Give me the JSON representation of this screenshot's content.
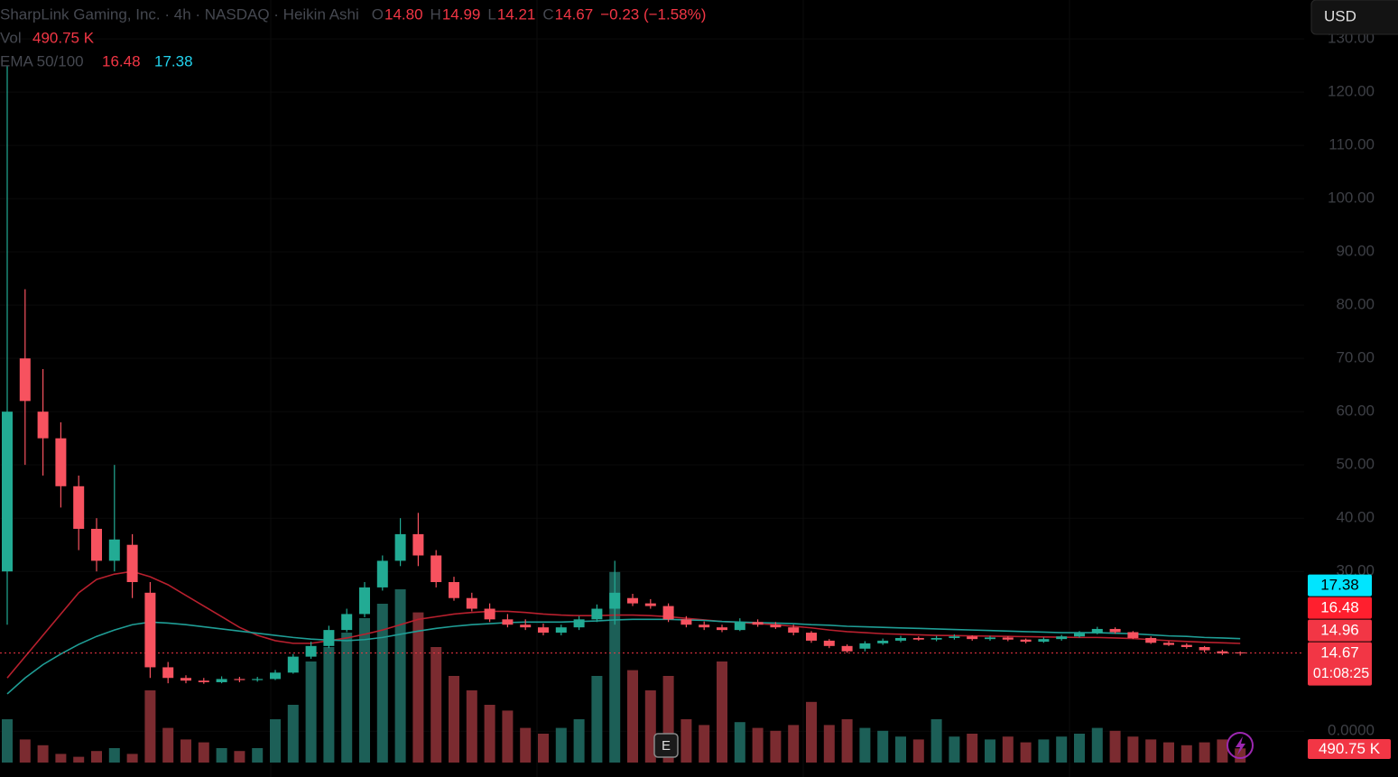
{
  "chart_data": {
    "type": "candlestick",
    "title": "SharpLink Gaming, Inc. · 4h · NASDAQ · Heikin Ashi",
    "ohlc_legend": [
      {
        "key": "O",
        "value": "14.80"
      },
      {
        "key": "H",
        "value": "14.99"
      },
      {
        "key": "L",
        "value": "14.21"
      },
      {
        "key": "C",
        "value": "14.67"
      }
    ],
    "change": "−0.23 (−1.58%)",
    "volume_legend": {
      "key": "Vol",
      "value": "490.75 K"
    },
    "ema_legend": {
      "key": "EMA 50/100",
      "values": [
        "16.48",
        "17.38"
      ]
    },
    "currency": "USD",
    "up_color": "#22ab94",
    "down_color": "#f7525f",
    "volume_up_color": "#1c5f57",
    "volume_down_color": "#7b2b30",
    "ylim": [
      -8.6,
      137.3
    ],
    "yticks": [
      {
        "value": 130,
        "label": "130.00"
      },
      {
        "value": 120,
        "label": "120.00"
      },
      {
        "value": 110,
        "label": "110.00"
      },
      {
        "value": 100,
        "label": "100.00"
      },
      {
        "value": 90,
        "label": "90.00"
      },
      {
        "value": 80,
        "label": "80.00"
      },
      {
        "value": 70,
        "label": "70.00"
      },
      {
        "value": 60,
        "label": "60.00"
      },
      {
        "value": 50,
        "label": "50.00"
      },
      {
        "value": 40,
        "label": "40.00"
      },
      {
        "value": 30,
        "label": "30.00"
      },
      {
        "value": 0,
        "label": "0.0000"
      }
    ],
    "grid": true,
    "open": [
      30,
      70,
      60,
      55,
      46,
      38,
      32,
      35,
      26,
      12,
      10,
      9.5,
      9.2,
      9.8,
      9.6,
      9.8,
      11,
      14,
      16,
      19,
      22,
      27,
      32,
      37,
      33,
      28,
      25,
      23,
      21,
      20,
      19.5,
      18.5,
      19.5,
      21,
      23,
      25,
      24,
      23.5,
      21,
      20,
      19.5,
      19,
      20.5,
      20,
      19.5,
      18.5,
      17,
      16,
      15.5,
      16.5,
      17,
      17.5,
      17.2,
      17.5,
      17.8,
      17.3,
      17.6,
      17.2,
      16.8,
      17.3,
      17.8,
      18.4,
      19.2,
      18.6,
      17.5,
      16.6,
      16.2,
      15.8,
      15.0,
      14.8
    ],
    "high": [
      125,
      83,
      68,
      58,
      48,
      40,
      50,
      37,
      28,
      13,
      10.5,
      10,
      10.3,
      10.2,
      10.2,
      11.5,
      14.5,
      16.8,
      19.8,
      23,
      28,
      33,
      40,
      41,
      34,
      29,
      26,
      24,
      22,
      21,
      20.2,
      20,
      21.6,
      23.8,
      32,
      25.8,
      24.8,
      24,
      21.6,
      20.6,
      20,
      21.2,
      21,
      20.5,
      20,
      18.8,
      17.3,
      16.3,
      16.9,
      17.4,
      17.9,
      17.8,
      17.9,
      18.2,
      18,
      17.9,
      17.8,
      17.4,
      17.6,
      18.1,
      18.8,
      19.6,
      19.5,
      18.8,
      17.8,
      16.9,
      16.5,
      16,
      15.3,
      14.99
    ],
    "low": [
      20,
      50,
      48,
      42,
      34,
      30,
      30,
      25,
      10,
      9,
      9,
      8.9,
      9,
      9.2,
      9.3,
      9.6,
      10.8,
      13.6,
      15.6,
      18.6,
      21.4,
      26.4,
      31,
      31,
      27,
      24.5,
      22.5,
      20.5,
      19.5,
      19,
      18,
      18,
      19,
      20.5,
      20,
      23.5,
      23,
      20.5,
      19.5,
      19,
      18.6,
      18.8,
      19.6,
      19.2,
      18,
      16.6,
      15.6,
      14.7,
      15,
      16.2,
      16.7,
      17,
      16.9,
      17.2,
      17,
      17,
      16.9,
      16.5,
      16.6,
      17,
      17.6,
      18.2,
      18.3,
      17.3,
      16.4,
      16,
      15.5,
      14.8,
      14.3,
      14.21
    ],
    "close": [
      60,
      62,
      55,
      46,
      38,
      32,
      36,
      28,
      12,
      10,
      9.5,
      9.2,
      9.8,
      9.6,
      9.8,
      11,
      14,
      16,
      19,
      22,
      27,
      32,
      37,
      33,
      28,
      25,
      23,
      21,
      20,
      19.5,
      18.5,
      19.5,
      21,
      23,
      26,
      24,
      23.5,
      21,
      20,
      19.5,
      19,
      20.5,
      20,
      19.5,
      18.5,
      17,
      16,
      15,
      16.5,
      17,
      17.5,
      17.2,
      17.5,
      17.8,
      17.3,
      17.6,
      17.2,
      16.8,
      17.3,
      17.8,
      18.4,
      19.2,
      18.6,
      17.5,
      16.6,
      16.2,
      15.8,
      15.2,
      14.6,
      14.67
    ],
    "volume": [
      1500,
      800,
      600,
      300,
      200,
      400,
      500,
      300,
      2500,
      1200,
      800,
      700,
      500,
      400,
      500,
      1500,
      2000,
      3500,
      4000,
      4500,
      5000,
      5500,
      6000,
      5200,
      4000,
      3000,
      2500,
      2000,
      1800,
      1200,
      1000,
      1200,
      1500,
      3000,
      6600,
      3200,
      2500,
      3000,
      1500,
      1300,
      3500,
      1400,
      1200,
      1100,
      1300,
      2100,
      1300,
      1500,
      1200,
      1100,
      900,
      800,
      1500,
      900,
      1000,
      800,
      900,
      700,
      800,
      900,
      1000,
      1200,
      1100,
      900,
      800,
      700,
      600,
      700,
      800,
      490.75
    ],
    "vlim": [
      0,
      10000
    ],
    "series": [
      {
        "name": "EMA 50",
        "color": "#b8202e",
        "values": [
          10,
          14,
          18,
          22,
          26,
          28.5,
          29.5,
          30,
          29,
          27.5,
          25.5,
          23.5,
          21.5,
          19.5,
          18,
          17,
          16.5,
          16.5,
          17,
          17.5,
          18.2,
          19,
          20,
          21,
          21.5,
          22,
          22.3,
          22.5,
          22.5,
          22.3,
          22,
          21.8,
          21.7,
          21.7,
          21.8,
          21.8,
          21.7,
          21.5,
          21.2,
          20.9,
          20.6,
          20.4,
          20.2,
          20,
          19.7,
          19.4,
          19,
          18.7,
          18.5,
          18.3,
          18.2,
          18.1,
          18,
          17.95,
          17.9,
          17.85,
          17.8,
          17.75,
          17.7,
          17.65,
          17.6,
          17.6,
          17.5,
          17.4,
          17.2,
          17,
          16.85,
          16.7,
          16.6,
          16.48
        ]
      },
      {
        "name": "EMA 100",
        "color": "#1f9e96",
        "values": [
          7,
          10,
          12.5,
          14.5,
          16.3,
          17.8,
          19,
          20,
          20.5,
          20.3,
          20,
          19.6,
          19.2,
          18.8,
          18.4,
          18,
          17.6,
          17.3,
          17.1,
          17,
          17.2,
          17.6,
          18.2,
          18.8,
          19.3,
          19.7,
          20,
          20.2,
          20.4,
          20.5,
          20.5,
          20.5,
          20.6,
          20.7,
          20.9,
          21,
          21,
          21,
          20.9,
          20.8,
          20.6,
          20.5,
          20.4,
          20.3,
          20.2,
          20,
          19.9,
          19.7,
          19.6,
          19.5,
          19.4,
          19.3,
          19.2,
          19.1,
          19,
          18.9,
          18.8,
          18.7,
          18.6,
          18.5,
          18.5,
          18.5,
          18.4,
          18.3,
          18.1,
          17.9,
          17.8,
          17.6,
          17.5,
          17.38
        ]
      }
    ],
    "price_tags": [
      {
        "value": 17.38,
        "label": "17.38",
        "color": "#00e5ff",
        "text_color": "#000000"
      },
      {
        "value": 16.48,
        "label": "16.48",
        "color": "#ff1f2e",
        "text_color": "#ffffff"
      },
      {
        "value": 14.96,
        "label": "14.96",
        "color": "#f23645",
        "text_color": "#ffffff"
      },
      {
        "value": 14.67,
        "label": "14.67",
        "countdown": "01:08:25",
        "color": "#f23645",
        "text_color": "#ffffff"
      }
    ],
    "volume_tag": {
      "label": "490.75 K",
      "color": "#f23645"
    },
    "event_marker": "E"
  }
}
